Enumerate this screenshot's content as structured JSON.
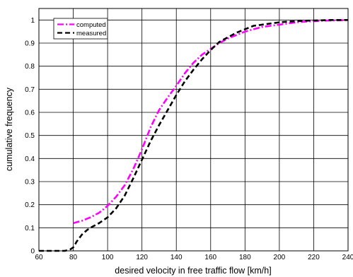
{
  "chart_data": {
    "type": "line",
    "title": "",
    "xlabel": "desired velocity in free traffic flow  [km/h]",
    "ylabel": "cumulative frequency",
    "xlim": [
      60,
      240
    ],
    "ylim": [
      0,
      1.05
    ],
    "x_ticks": [
      "60",
      "80",
      "100",
      "120",
      "140",
      "160",
      "180",
      "200",
      "220",
      "240"
    ],
    "y_ticks": [
      "0",
      "0.1",
      "0.2",
      "0.3",
      "0.4",
      "0.5",
      "0.6",
      "0.7",
      "0.8",
      "0.9",
      "1"
    ],
    "grid": true,
    "legend_position": "top-left",
    "series": [
      {
        "name": "computed",
        "color": "#ff00ff",
        "style": "dash-dot",
        "x": [
          80,
          85,
          90,
          95,
          100,
          105,
          110,
          115,
          120,
          125,
          130,
          135,
          140,
          145,
          150,
          155,
          160,
          165,
          170,
          175,
          180,
          185,
          190,
          195,
          200,
          205,
          210,
          215,
          220,
          225,
          230,
          235,
          240
        ],
        "y": [
          0.12,
          0.13,
          0.145,
          0.165,
          0.195,
          0.235,
          0.285,
          0.355,
          0.44,
          0.535,
          0.61,
          0.665,
          0.715,
          0.77,
          0.815,
          0.85,
          0.875,
          0.9,
          0.92,
          0.935,
          0.95,
          0.96,
          0.97,
          0.975,
          0.98,
          0.985,
          0.99,
          0.993,
          0.995,
          0.997,
          0.998,
          0.999,
          1.0
        ]
      },
      {
        "name": "measured",
        "color": "#000000",
        "style": "dashed",
        "x": [
          60,
          65,
          70,
          75,
          78,
          80,
          82,
          85,
          88,
          90,
          95,
          100,
          105,
          110,
          115,
          120,
          125,
          130,
          135,
          140,
          145,
          150,
          155,
          160,
          165,
          170,
          175,
          180,
          185,
          190,
          195,
          200,
          205,
          210,
          215,
          220,
          225,
          230,
          235,
          240
        ],
        "y": [
          0,
          0,
          0,
          0,
          0.005,
          0.015,
          0.04,
          0.07,
          0.09,
          0.1,
          0.12,
          0.145,
          0.185,
          0.24,
          0.315,
          0.395,
          0.475,
          0.545,
          0.61,
          0.675,
          0.735,
          0.785,
          0.83,
          0.87,
          0.905,
          0.925,
          0.945,
          0.96,
          0.975,
          0.98,
          0.985,
          0.99,
          0.993,
          0.995,
          0.997,
          0.998,
          0.999,
          1.0,
          1.0,
          1.0
        ]
      }
    ]
  }
}
